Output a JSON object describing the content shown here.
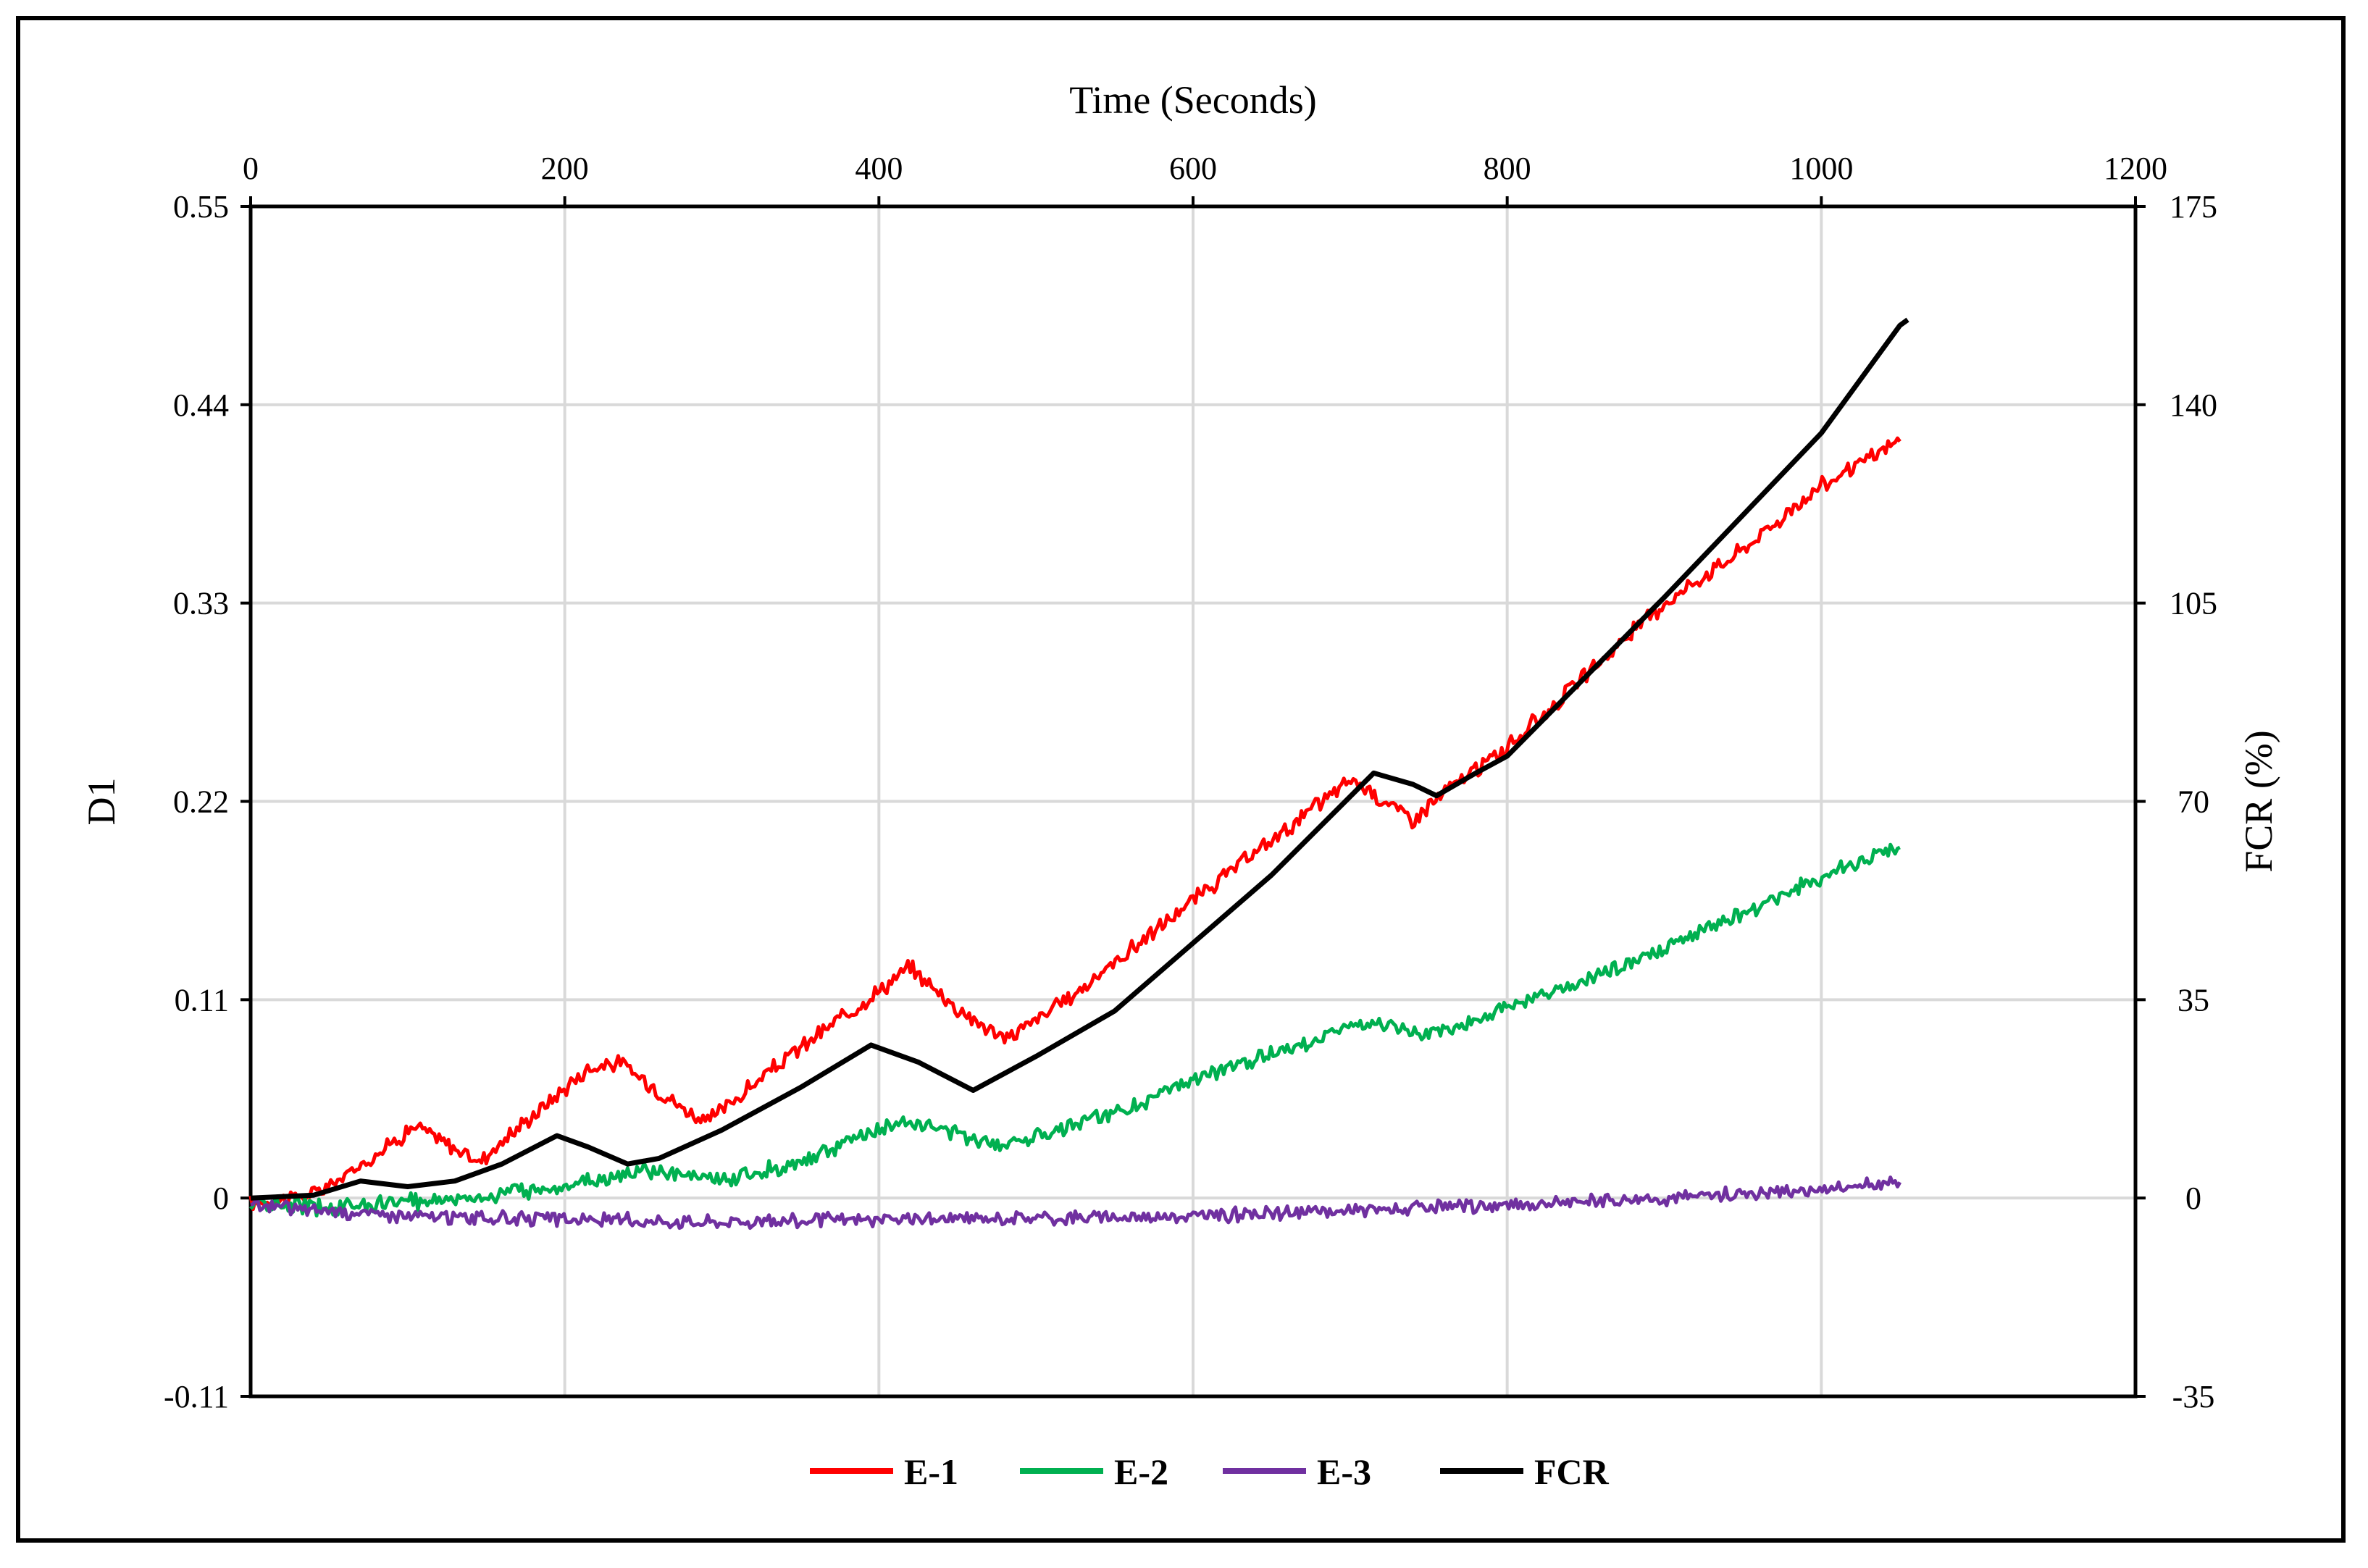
{
  "chart_data": {
    "type": "line",
    "title": "",
    "xlabel": "Time (Seconds)",
    "ylabel_left": "D1",
    "ylabel_right": "FCR (%)",
    "xlim": [
      0,
      1200
    ],
    "ylim_left": [
      -0.11,
      0.55
    ],
    "ylim_right": [
      -35,
      175
    ],
    "grid": true,
    "legend_position": "bottom",
    "x_ticks": [
      "0",
      "200",
      "400",
      "600",
      "800",
      "1000",
      "1200"
    ],
    "y_left_ticks": [
      "-0.11",
      "0",
      "0.11",
      "0.22",
      "0.33",
      "0.44",
      "0.55"
    ],
    "y_right_ticks": [
      "-35",
      "0",
      "35",
      "70",
      "105",
      "140",
      "175"
    ],
    "series": [
      {
        "name": "E-1",
        "axis": "left",
        "color": "#ff0000",
        "noise": 0.0035,
        "x": [
          0,
          40,
          60,
          105,
          145,
          215,
          235,
          275,
          290,
          345,
          395,
          420,
          450,
          480,
          520,
          600,
          660,
          700,
          705,
          740,
          760,
          800,
          850,
          900,
          950,
          1000,
          1050
        ],
        "y": [
          -0.003,
          0.002,
          0.012,
          0.04,
          0.02,
          0.072,
          0.075,
          0.05,
          0.042,
          0.08,
          0.112,
          0.128,
          0.105,
          0.088,
          0.11,
          0.165,
          0.205,
          0.232,
          0.23,
          0.21,
          0.225,
          0.25,
          0.29,
          0.33,
          0.36,
          0.395,
          0.42
        ]
      },
      {
        "name": "E-2",
        "axis": "left",
        "color": "#00b050",
        "noise": 0.0035,
        "x": [
          0,
          50,
          100,
          150,
          200,
          250,
          300,
          350,
          400,
          420,
          450,
          480,
          520,
          560,
          600,
          650,
          700,
          710,
          740,
          760,
          800,
          850,
          900,
          950,
          1000,
          1050
        ],
        "y": [
          -0.003,
          -0.005,
          -0.002,
          0.001,
          0.007,
          0.015,
          0.01,
          0.02,
          0.038,
          0.043,
          0.035,
          0.03,
          0.04,
          0.05,
          0.065,
          0.08,
          0.095,
          0.098,
          0.09,
          0.093,
          0.105,
          0.12,
          0.138,
          0.158,
          0.178,
          0.196
        ]
      },
      {
        "name": "E-3",
        "axis": "left",
        "color": "#7030a0",
        "noise": 0.003,
        "x": [
          0,
          100,
          200,
          300,
          400,
          500,
          600,
          700,
          800,
          900,
          1000,
          1050
        ],
        "y": [
          -0.004,
          -0.01,
          -0.012,
          -0.013,
          -0.012,
          -0.011,
          -0.01,
          -0.007,
          -0.004,
          0.0,
          0.005,
          0.008
        ]
      },
      {
        "name": "FCR",
        "axis": "right",
        "color": "#000000",
        "noise": 0,
        "x": [
          0,
          40,
          70,
          100,
          130,
          160,
          195,
          215,
          240,
          260,
          300,
          350,
          395,
          425,
          460,
          500,
          550,
          600,
          650,
          715,
          740,
          755,
          780,
          800,
          900,
          1000,
          1050,
          1055
        ],
        "y": [
          0,
          0.5,
          3,
          2,
          3,
          6,
          11,
          9,
          6,
          7,
          12,
          19.5,
          27,
          24,
          19,
          25,
          33,
          45,
          57,
          75,
          73,
          71,
          75,
          78,
          106,
          135,
          154,
          155
        ]
      }
    ]
  }
}
